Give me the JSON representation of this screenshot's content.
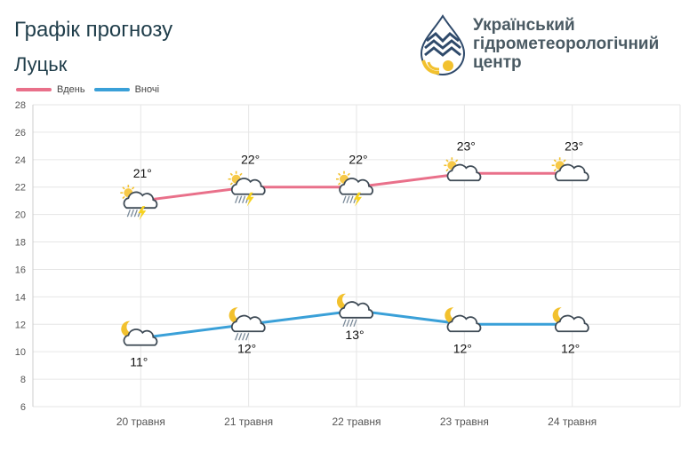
{
  "header": {
    "title": "Графік прогнозу",
    "city": "Луцьк",
    "org_name_lines": [
      "Український",
      "гідрометеорологічний",
      "центр"
    ]
  },
  "colors": {
    "day": "#e9708a",
    "night": "#3aa0d8",
    "grid": "#e6e6e6",
    "axis_text": "#555555"
  },
  "chart_data": {
    "type": "line",
    "categories": [
      "20 травня",
      "21 травня",
      "22 травня",
      "23 травня",
      "24 травня"
    ],
    "series": [
      {
        "name": "Вдень",
        "values": [
          21,
          22,
          22,
          23,
          23
        ],
        "labels": [
          "21°",
          "22°",
          "22°",
          "23°",
          "23°"
        ],
        "icons": [
          "sun-cloud-rain-thunder",
          "sun-cloud-rain-thunder",
          "sun-cloud-rain-thunder",
          "sun-cloud",
          "sun-cloud"
        ]
      },
      {
        "name": "Вночі",
        "values": [
          11,
          12,
          13,
          12,
          12
        ],
        "labels": [
          "11°",
          "12°",
          "13°",
          "12°",
          "12°"
        ],
        "icons": [
          "moon-cloud",
          "moon-cloud-rain",
          "moon-cloud-rain",
          "moon-cloud",
          "moon-cloud"
        ]
      }
    ],
    "y_ticks": [
      6,
      8,
      10,
      12,
      14,
      16,
      18,
      20,
      22,
      24,
      26,
      28
    ],
    "ylim": [
      6,
      28
    ],
    "grid": true,
    "legend_position": "top-left"
  }
}
